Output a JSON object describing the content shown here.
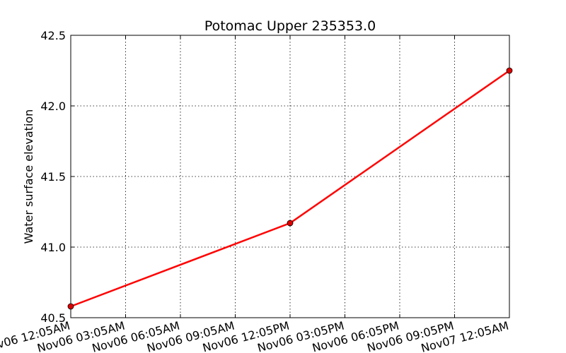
{
  "chart_data": {
    "type": "line",
    "title": "Potomac Upper 235353.0",
    "xlabel": "",
    "ylabel": "Water surface elevation",
    "x_ticks": [
      "Nov06 12:05AM",
      "Nov06 03:05AM",
      "Nov06 06:05AM",
      "Nov06 09:05AM",
      "Nov06 12:05PM",
      "Nov06 03:05PM",
      "Nov06 06:05PM",
      "Nov06 09:05PM",
      "Nov07 12:05AM"
    ],
    "y_ticks": [
      "40.5",
      "41.0",
      "41.5",
      "42.0",
      "42.5"
    ],
    "ylim": [
      40.5,
      42.5
    ],
    "grid": true,
    "series": [
      {
        "color": "#ff0000",
        "marker_color": "#dd0000",
        "points": [
          {
            "x": "Nov06 12:05AM",
            "y": 40.58
          },
          {
            "x": "Nov06 12:05PM",
            "y": 41.17
          },
          {
            "x": "Nov07 12:05AM",
            "y": 42.25
          }
        ]
      }
    ]
  }
}
